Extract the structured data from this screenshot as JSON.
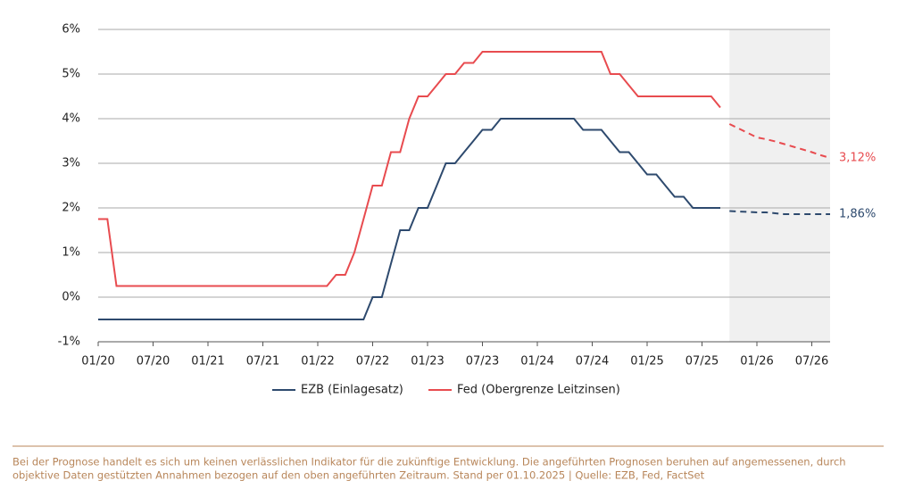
{
  "chart_data": {
    "type": "line",
    "x": [
      "01/20",
      "02/20",
      "03/20",
      "04/20",
      "05/20",
      "06/20",
      "07/20",
      "08/20",
      "09/20",
      "10/20",
      "11/20",
      "12/20",
      "01/21",
      "02/21",
      "03/21",
      "04/21",
      "05/21",
      "06/21",
      "07/21",
      "08/21",
      "09/21",
      "10/21",
      "11/21",
      "12/21",
      "01/22",
      "02/22",
      "03/22",
      "04/22",
      "05/22",
      "06/22",
      "07/22",
      "08/22",
      "09/22",
      "10/22",
      "11/22",
      "12/22",
      "01/23",
      "02/23",
      "03/23",
      "04/23",
      "05/23",
      "06/23",
      "07/23",
      "08/23",
      "09/23",
      "10/23",
      "11/23",
      "12/23",
      "01/24",
      "02/24",
      "03/24",
      "04/24",
      "05/24",
      "06/24",
      "07/24",
      "08/24",
      "09/24",
      "10/24",
      "11/24",
      "12/24",
      "01/25",
      "02/25",
      "03/25",
      "04/25",
      "05/25",
      "06/25",
      "07/25",
      "08/25",
      "09/25"
    ],
    "forecast_x": [
      "10/25",
      "11/25",
      "12/25",
      "01/26",
      "02/26",
      "03/26",
      "04/26",
      "05/26",
      "06/26",
      "07/26",
      "08/26",
      "09/26"
    ],
    "forecast_style": "dashed",
    "shaded_region": {
      "from": "10/25",
      "to": "09/26",
      "color": "#f0f0f0"
    },
    "series": [
      {
        "name": "EZB (Einlagesatz)",
        "color": "#2e4a6e",
        "values": [
          -0.5,
          -0.5,
          -0.5,
          -0.5,
          -0.5,
          -0.5,
          -0.5,
          -0.5,
          -0.5,
          -0.5,
          -0.5,
          -0.5,
          -0.5,
          -0.5,
          -0.5,
          -0.5,
          -0.5,
          -0.5,
          -0.5,
          -0.5,
          -0.5,
          -0.5,
          -0.5,
          -0.5,
          -0.5,
          -0.5,
          -0.5,
          -0.5,
          -0.5,
          -0.5,
          0,
          0,
          0.75,
          1.5,
          1.5,
          2.0,
          2.0,
          2.5,
          3.0,
          3.0,
          3.25,
          3.5,
          3.75,
          3.75,
          4.0,
          4.0,
          4.0,
          4.0,
          4.0,
          4.0,
          4.0,
          4.0,
          4.0,
          3.75,
          3.75,
          3.75,
          3.5,
          3.25,
          3.25,
          3.0,
          2.75,
          2.75,
          2.5,
          2.25,
          2.25,
          2.0,
          2.0,
          2.0,
          2.0
        ],
        "forecast_values": [
          1.93,
          1.92,
          1.91,
          1.9,
          1.9,
          1.88,
          1.86,
          1.86,
          1.86,
          1.86,
          1.86,
          1.86
        ],
        "end_label": "1,86%"
      },
      {
        "name": "Fed (Obergrenze Leitzinsen)",
        "color": "#e84b4f",
        "values": [
          1.75,
          1.75,
          0.25,
          0.25,
          0.25,
          0.25,
          0.25,
          0.25,
          0.25,
          0.25,
          0.25,
          0.25,
          0.25,
          0.25,
          0.25,
          0.25,
          0.25,
          0.25,
          0.25,
          0.25,
          0.25,
          0.25,
          0.25,
          0.25,
          0.25,
          0.25,
          0.5,
          0.5,
          1.0,
          1.75,
          2.5,
          2.5,
          3.25,
          3.25,
          4.0,
          4.5,
          4.5,
          4.75,
          5.0,
          5.0,
          5.25,
          5.25,
          5.5,
          5.5,
          5.5,
          5.5,
          5.5,
          5.5,
          5.5,
          5.5,
          5.5,
          5.5,
          5.5,
          5.5,
          5.5,
          5.5,
          5.0,
          5.0,
          4.75,
          4.5,
          4.5,
          4.5,
          4.5,
          4.5,
          4.5,
          4.5,
          4.5,
          4.5,
          4.25
        ],
        "forecast_values": [
          3.88,
          3.78,
          3.68,
          3.58,
          3.54,
          3.49,
          3.43,
          3.37,
          3.31,
          3.25,
          3.18,
          3.12
        ],
        "end_label": "3,12%"
      }
    ],
    "xlim": [
      "01/20",
      "09/26"
    ],
    "xticks": [
      "01/20",
      "07/20",
      "01/21",
      "07/21",
      "01/22",
      "07/22",
      "01/23",
      "07/23",
      "01/24",
      "07/24",
      "01/25",
      "07/25",
      "01/26",
      "07/26"
    ],
    "ylim": [
      -1,
      6
    ],
    "yticks": [
      {
        "value": -1,
        "label": "-1%"
      },
      {
        "value": 0,
        "label": "0%"
      },
      {
        "value": 1,
        "label": "1%"
      },
      {
        "value": 2,
        "label": "2%"
      },
      {
        "value": 3,
        "label": "3%"
      },
      {
        "value": 4,
        "label": "4%"
      },
      {
        "value": 5,
        "label": "5%"
      },
      {
        "value": 6,
        "label": "6%"
      }
    ],
    "grid": true,
    "legend": "bottom",
    "footnote": [
      "Bei der Prognose handelt es sich um keinen verlässlichen Indikator für die zukünftige Entwicklung. Die angeführten Prognosen beruhen auf angemessenen, durch",
      "objektive Daten gestützten Annahmen bezogen auf den oben angeführten Zeitraum. Stand per 01.10.2025 | Quelle: EZB, Fed, FactSet"
    ],
    "footnote_color": "#b8865a"
  }
}
